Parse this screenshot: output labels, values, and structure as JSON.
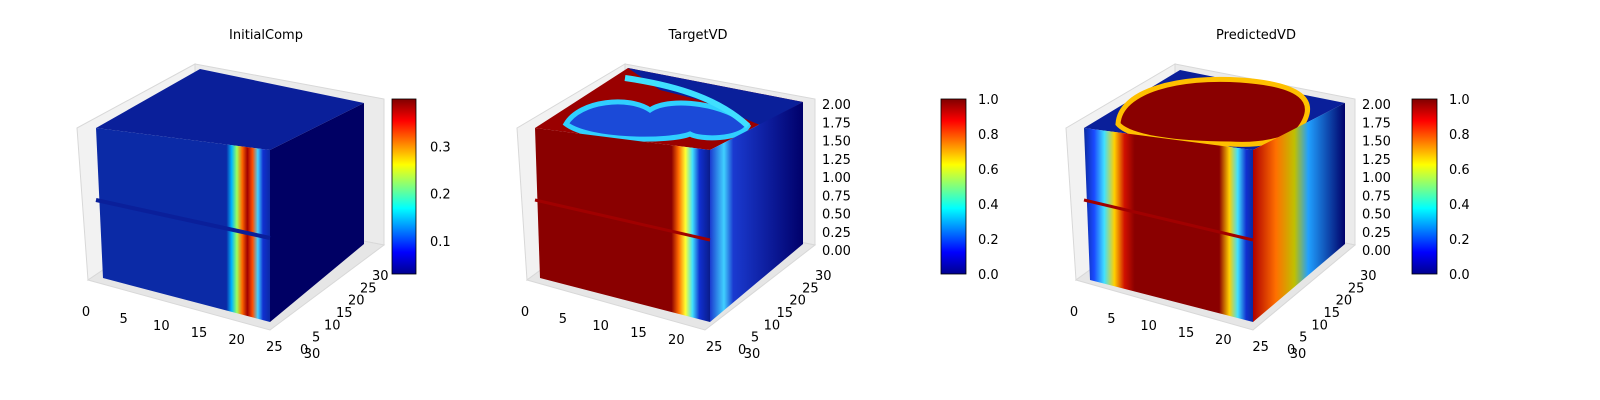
{
  "chart_data": [
    {
      "type": "3d-voxel",
      "title": "InitialComp",
      "x_ticks": [
        "0",
        "5",
        "10",
        "15",
        "20",
        "25",
        "30"
      ],
      "y_ticks": [
        "0",
        "5",
        "10",
        "15",
        "20",
        "25",
        "30"
      ],
      "z_ticks": [],
      "colorbar": {
        "colormap": "jet",
        "min": 0.03,
        "max": 0.4,
        "ticks": [
          "0.1",
          "0.2",
          "0.3"
        ]
      },
      "grid": true,
      "legend": "none"
    },
    {
      "type": "3d-voxel",
      "title": "TargetVD",
      "x_ticks": [
        "0",
        "5",
        "10",
        "15",
        "20",
        "25",
        "30"
      ],
      "y_ticks": [
        "0",
        "5",
        "10",
        "15",
        "20",
        "25",
        "30"
      ],
      "z_ticks": [
        "0.00",
        "0.25",
        "0.50",
        "0.75",
        "1.00",
        "1.25",
        "1.50",
        "1.75",
        "2.00"
      ],
      "colorbar": {
        "colormap": "jet",
        "min": 0.0,
        "max": 1.0,
        "ticks": [
          "0.0",
          "0.2",
          "0.4",
          "0.6",
          "0.8",
          "1.0"
        ]
      },
      "grid": true,
      "legend": "none"
    },
    {
      "type": "3d-voxel",
      "title": "PredictedVD",
      "x_ticks": [
        "0",
        "5",
        "10",
        "15",
        "20",
        "25",
        "30"
      ],
      "y_ticks": [
        "0",
        "5",
        "10",
        "15",
        "20",
        "25",
        "30"
      ],
      "z_ticks": [
        "0.00",
        "0.25",
        "0.50",
        "0.75",
        "1.00",
        "1.25",
        "1.50",
        "1.75",
        "2.00"
      ],
      "colorbar": {
        "colormap": "jet",
        "min": 0.0,
        "max": 1.0,
        "ticks": [
          "0.0",
          "0.2",
          "0.4",
          "0.6",
          "0.8",
          "1.0"
        ]
      },
      "grid": true,
      "legend": "none"
    }
  ],
  "colors": {
    "background": "#ffffff",
    "voxel_low": "#00008f",
    "voxel_high": "#800000",
    "pane": "#f2f2f2",
    "grid": "#d0d0d0"
  }
}
